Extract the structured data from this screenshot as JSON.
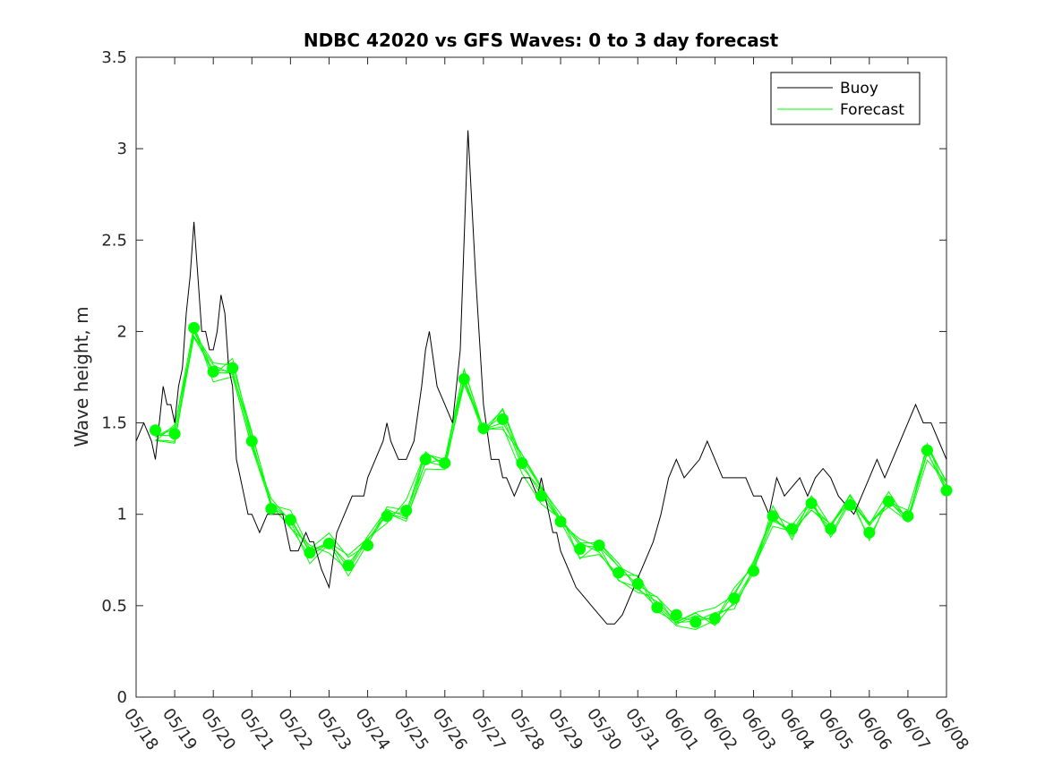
{
  "chart_data": {
    "type": "line",
    "title": "NDBC 42020 vs GFS Waves: 0 to 3 day forecast",
    "xlabel": "",
    "ylabel": "Wave height, m",
    "ylim": [
      0,
      3.5
    ],
    "yticks": [
      0,
      0.5,
      1,
      1.5,
      2,
      2.5,
      3,
      3.5
    ],
    "ytick_labels": [
      "0",
      "0.5",
      "1",
      "1.5",
      "2",
      "2.5",
      "3",
      "3.5"
    ],
    "xlim_days": [
      "05/18",
      "06/08"
    ],
    "xtick_labels": [
      "05/18",
      "05/19",
      "05/20",
      "05/21",
      "05/22",
      "05/23",
      "05/24",
      "05/25",
      "05/26",
      "05/27",
      "05/28",
      "05/29",
      "05/30",
      "05/31",
      "06/01",
      "06/02",
      "06/03",
      "06/04",
      "06/05",
      "06/06",
      "06/07",
      "06/08"
    ],
    "grid": false,
    "legend": {
      "placement": "top-right",
      "entries": [
        {
          "name": "Buoy",
          "color": "#000000"
        },
        {
          "name": "Forecast",
          "color": "#00ff00"
        }
      ]
    },
    "series": [
      {
        "name": "Buoy",
        "color": "#000000",
        "x_day": [
          0,
          0.2,
          0.4,
          0.5,
          0.6,
          0.7,
          0.8,
          0.9,
          1.0,
          1.1,
          1.2,
          1.3,
          1.4,
          1.5,
          1.6,
          1.7,
          1.8,
          1.9,
          2.0,
          2.1,
          2.2,
          2.3,
          2.4,
          2.5,
          2.6,
          2.7,
          2.8,
          2.9,
          3.0,
          3.2,
          3.4,
          3.6,
          3.8,
          4.0,
          4.2,
          4.4,
          4.5,
          4.6,
          4.8,
          5.0,
          5.2,
          5.4,
          5.6,
          5.8,
          5.9,
          6.0,
          6.2,
          6.4,
          6.5,
          6.6,
          6.8,
          7.0,
          7.2,
          7.4,
          7.5,
          7.6,
          7.8,
          8.0,
          8.2,
          8.4,
          8.5,
          8.6,
          8.8,
          9.0,
          9.2,
          9.4,
          9.5,
          9.6,
          9.8,
          10.0,
          10.2,
          10.4,
          10.5,
          10.6,
          10.7,
          10.8,
          10.9,
          11.0,
          11.2,
          11.4,
          11.6,
          11.8,
          12.0,
          12.2,
          12.4,
          12.6,
          12.8,
          13.0,
          13.2,
          13.4,
          13.6,
          13.8,
          14.0,
          14.2,
          14.4,
          14.6,
          14.8,
          15.0,
          15.2,
          15.4,
          15.6,
          15.8,
          16.0,
          16.2,
          16.4,
          16.5,
          16.6,
          16.8,
          17.0,
          17.2,
          17.4,
          17.6,
          17.8,
          18.0,
          18.2,
          18.4,
          18.6,
          18.8,
          19.0,
          19.2,
          19.4,
          19.6,
          19.8,
          20.0,
          20.2,
          20.4,
          20.6,
          20.8,
          21.0
        ],
        "y": [
          1.4,
          1.5,
          1.4,
          1.3,
          1.5,
          1.7,
          1.6,
          1.6,
          1.5,
          1.7,
          1.8,
          2.1,
          2.3,
          2.6,
          2.3,
          2.0,
          2.0,
          1.9,
          1.9,
          2.0,
          2.2,
          2.1,
          1.8,
          1.7,
          1.3,
          1.2,
          1.1,
          1.0,
          1.0,
          0.9,
          1.0,
          1.0,
          1.0,
          0.8,
          0.8,
          0.9,
          0.85,
          0.85,
          0.7,
          0.6,
          0.9,
          1.0,
          1.1,
          1.1,
          1.1,
          1.2,
          1.3,
          1.4,
          1.5,
          1.4,
          1.3,
          1.3,
          1.4,
          1.7,
          1.9,
          2.0,
          1.7,
          1.6,
          1.5,
          1.9,
          2.5,
          3.1,
          2.3,
          1.6,
          1.3,
          1.3,
          1.2,
          1.2,
          1.1,
          1.2,
          1.2,
          1.1,
          1.2,
          1.1,
          1.0,
          0.9,
          0.9,
          0.8,
          0.7,
          0.6,
          0.55,
          0.5,
          0.45,
          0.4,
          0.4,
          0.45,
          0.55,
          0.65,
          0.75,
          0.85,
          1.0,
          1.2,
          1.3,
          1.2,
          1.25,
          1.3,
          1.4,
          1.3,
          1.2,
          1.2,
          1.2,
          1.2,
          1.1,
          1.1,
          1.0,
          1.1,
          1.2,
          1.1,
          1.15,
          1.2,
          1.1,
          1.2,
          1.25,
          1.2,
          1.1,
          1.05,
          1.0,
          1.1,
          1.2,
          1.3,
          1.2,
          1.3,
          1.4,
          1.5,
          1.6,
          1.5,
          1.5,
          1.4,
          1.3
        ],
        "note": ""
      },
      {
        "name": "Forecast",
        "color": "#00ff00",
        "markers_x_day": [
          0.5,
          1.0,
          1.5,
          2.0,
          2.5,
          3.0,
          3.5,
          4.0,
          4.5,
          5.0,
          5.5,
          6.0,
          6.5,
          7.0,
          7.5,
          8.0,
          8.5,
          9.0,
          9.5,
          10.0,
          10.5,
          11.0,
          11.5,
          12.0,
          12.5,
          13.0,
          13.5,
          14.0,
          14.5,
          15.0,
          15.5,
          16.0,
          16.5,
          17.0,
          17.5,
          18.0,
          18.5,
          19.0,
          19.5,
          20.0,
          20.5,
          21.0
        ],
        "markers_y": [
          1.46,
          1.44,
          2.02,
          1.78,
          1.8,
          1.4,
          1.03,
          0.97,
          0.79,
          0.84,
          0.72,
          0.83,
          0.99,
          1.02,
          1.3,
          1.28,
          1.74,
          1.47,
          1.52,
          1.28,
          1.1,
          0.96,
          0.81,
          0.83,
          0.68,
          0.62,
          0.49,
          0.45,
          0.41,
          0.43,
          0.54,
          0.69,
          0.99,
          0.92,
          1.06,
          0.92,
          1.05,
          0.9,
          1.07,
          0.99,
          1.35,
          1.13
        ]
      }
    ]
  }
}
